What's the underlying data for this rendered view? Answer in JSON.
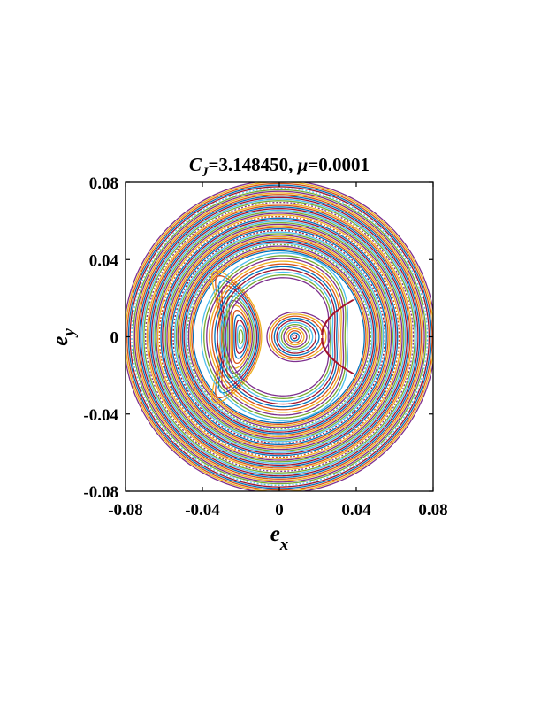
{
  "chart_data": {
    "type": "scatter",
    "title": {
      "var": "C",
      "var_sub": "J",
      "rest_a": "=3.148450, ",
      "param": "μ",
      "rest_b": "=0.0001"
    },
    "xlabel": {
      "main": "e",
      "sub": "x"
    },
    "ylabel": {
      "main": "e",
      "sub": "y"
    },
    "xlim": [
      -0.08,
      0.08
    ],
    "ylim": [
      -0.08,
      0.08
    ],
    "xticks": [
      -0.08,
      -0.04,
      0,
      0.04,
      0.08
    ],
    "yticks": [
      -0.08,
      -0.04,
      0,
      0.04,
      0.08
    ],
    "xtick_labels": [
      "-0.08",
      "-0.04",
      "0",
      "0.04",
      "0.08"
    ],
    "ytick_labels": [
      "-0.08",
      "-0.04",
      "0",
      "0.04",
      "0.08"
    ],
    "grid": false,
    "legend": "none",
    "palette": [
      "#0072BD",
      "#D95319",
      "#EDB120",
      "#7E2F8E",
      "#77AC30",
      "#4DBEEE",
      "#A2142F"
    ],
    "families": {
      "outer_circulating": {
        "radii": [
          0.0445,
          0.081
        ],
        "count": 46
      },
      "crescent_island": {
        "center": [
          -0.02,
          0.0
        ],
        "extent": [
          0.002,
          0.0195
        ]
      },
      "inner_island": {
        "center": [
          0.008,
          0.0
        ],
        "extent": [
          0.001,
          0.0135
        ]
      },
      "separatrix_x_point": [
        0.026,
        0.0
      ]
    }
  }
}
